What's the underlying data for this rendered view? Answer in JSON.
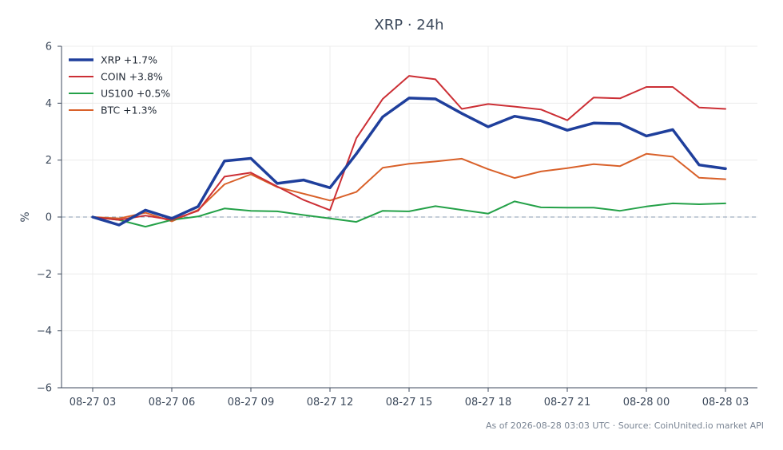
{
  "chart_data": {
    "type": "line",
    "title": "XRP · 24h",
    "xlabel": "",
    "ylabel": "%",
    "ylim": [
      -6,
      6
    ],
    "yticks": [
      -6,
      -4,
      -2,
      0,
      2,
      4,
      6
    ],
    "ytick_labels": [
      "−6",
      "−4",
      "−2",
      "0",
      "2",
      "4",
      "6"
    ],
    "x": [
      "08-27 03",
      "08-27 04",
      "08-27 05",
      "08-27 06",
      "08-27 07",
      "08-27 08",
      "08-27 09",
      "08-27 10",
      "08-27 11",
      "08-27 12",
      "08-27 13",
      "08-27 14",
      "08-27 15",
      "08-27 16",
      "08-27 17",
      "08-27 18",
      "08-27 19",
      "08-27 20",
      "08-27 21",
      "08-27 22",
      "08-27 23",
      "08-28 00",
      "08-28 01",
      "08-28 02",
      "08-28 03"
    ],
    "xtick_labels": [
      "08-27 03",
      "08-27 06",
      "08-27 09",
      "08-27 12",
      "08-27 15",
      "08-27 18",
      "08-27 21",
      "08-28 00",
      "08-28 03"
    ],
    "zero_line": true,
    "grid": true,
    "legend_position": "top-left",
    "series": [
      {
        "name": "BTC +1.3%",
        "color": "#d9612a",
        "values": [
          0.0,
          -0.05,
          0.15,
          -0.15,
          0.25,
          1.15,
          1.5,
          1.05,
          0.82,
          0.58,
          0.88,
          1.73,
          1.87,
          1.95,
          2.05,
          1.68,
          1.37,
          1.6,
          1.72,
          1.86,
          1.79,
          2.22,
          2.12,
          1.38,
          1.33
        ]
      },
      {
        "name": "US100 +0.5%",
        "color": "#24a148",
        "values": [
          0.0,
          -0.1,
          -0.34,
          -0.1,
          0.02,
          0.3,
          0.22,
          0.2,
          0.07,
          -0.05,
          -0.17,
          0.22,
          0.2,
          0.38,
          0.25,
          0.12,
          0.55,
          0.34,
          0.33,
          0.33,
          0.22,
          0.37,
          0.48,
          0.45,
          0.48
        ]
      },
      {
        "name": "COIN +3.8%",
        "color": "#cc2f35",
        "values": [
          0.0,
          -0.1,
          0.05,
          -0.1,
          0.22,
          1.42,
          1.56,
          1.07,
          0.6,
          0.24,
          2.77,
          4.15,
          4.96,
          4.84,
          3.8,
          3.97,
          3.88,
          3.78,
          3.4,
          4.2,
          4.17,
          4.57,
          4.57,
          3.85,
          3.8
        ]
      },
      {
        "name": "XRP +1.7%",
        "color": "#1f3f9c",
        "values": [
          0.0,
          -0.28,
          0.24,
          -0.05,
          0.37,
          1.97,
          2.06,
          1.18,
          1.3,
          1.03,
          2.22,
          3.52,
          4.18,
          4.15,
          3.64,
          3.17,
          3.54,
          3.38,
          3.05,
          3.3,
          3.28,
          2.85,
          3.07,
          1.83,
          1.7
        ]
      }
    ],
    "legend_order": [
      "XRP +1.7%",
      "COIN +3.8%",
      "US100 +0.5%",
      "BTC +1.3%"
    ]
  },
  "footer": {
    "text": "As of 2026-08-28 03:03 UTC · Source: CoinUnited.io market API"
  }
}
